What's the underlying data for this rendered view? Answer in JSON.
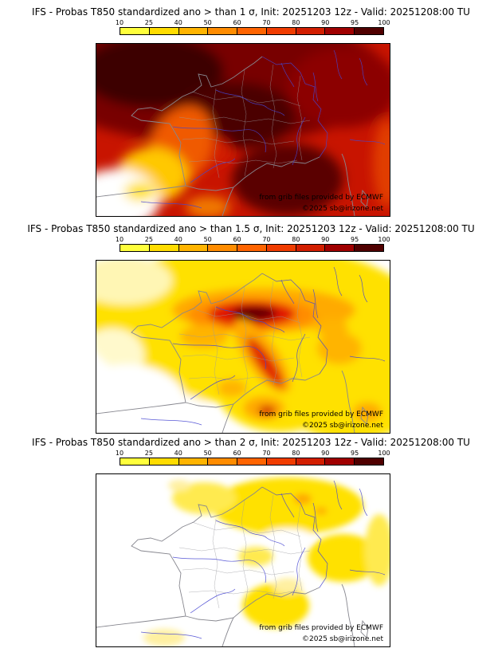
{
  "page": {
    "background": "#ffffff"
  },
  "colorbar": {
    "ticks": [
      "10",
      "25",
      "40",
      "50",
      "60",
      "70",
      "80",
      "90",
      "95",
      "100"
    ],
    "colors": [
      "#ffff3c",
      "#ffdc00",
      "#ffb400",
      "#ff8c00",
      "#ff6400",
      "#f03c00",
      "#d21e00",
      "#a00000",
      "#500000"
    ]
  },
  "panels": [
    {
      "title": "IFS - Probas T850  standardized ano > than 1 σ, Init: 20251203 12z - Valid: 20251208:00 TU",
      "credit": "from grib files provided by ECMWF",
      "copyright": "©2025 sb@irizone.net"
    },
    {
      "title": "IFS - Probas T850  standardized ano > than 1.5 σ, Init: 20251203 12z - Valid: 20251208:00 TU",
      "credit": "from grib files provided by ECMWF",
      "copyright": "©2025 sb@irizone.net"
    },
    {
      "title": "IFS - Probas T850  standardized ano > than 2 σ, Init: 20251203 12z - Valid: 20251208:00 TU",
      "credit": "from grib files provided by ECMWF",
      "copyright": "©2025 sb@irizone.net"
    }
  ],
  "chart_data": [
    {
      "type": "heatmap",
      "model": "IFS",
      "variable": "T850 standardized anomaly probability",
      "threshold": "> 1 sigma",
      "init": "20251203 12z",
      "valid": "20251208:00 TU",
      "units": "probability %",
      "region": "France and western Europe",
      "colorbar_ticks": [
        10,
        25,
        40,
        50,
        60,
        70,
        80,
        90,
        95,
        100
      ],
      "colorbar_colors": [
        "#ffff3c",
        "#ffdc00",
        "#ffb400",
        "#ff8c00",
        "#ff6400",
        "#f03c00",
        "#d21e00",
        "#a00000",
        "#500000"
      ],
      "field_regions": [
        {
          "area": "northern France, Channel, Benelux",
          "probability_pct": "95-100"
        },
        {
          "area": "central France and lower Mediterranean area",
          "probability_pct": "90-100"
        },
        {
          "area": "eastern third of map (Germany, Alps, Italy)",
          "probability_pct": "80-95"
        },
        {
          "area": "west Atlantic coastal strip",
          "probability_pct": "40-80"
        },
        {
          "area": "Bay of Biscay / northwest Spain corner",
          "probability_pct": "0-40"
        }
      ]
    },
    {
      "type": "heatmap",
      "model": "IFS",
      "variable": "T850 standardized anomaly probability",
      "threshold": "> 1.5 sigma",
      "init": "20251203 12z",
      "valid": "20251208:00 TU",
      "units": "probability %",
      "region": "France and western Europe",
      "colorbar_ticks": [
        10,
        25,
        40,
        50,
        60,
        70,
        80,
        90,
        95,
        100
      ],
      "colorbar_colors": [
        "#ffff3c",
        "#ffdc00",
        "#ffb400",
        "#ff8c00",
        "#ff6400",
        "#f03c00",
        "#d21e00",
        "#a00000",
        "#500000"
      ],
      "field_regions": [
        {
          "area": "dark core over Paris basin / northeast France",
          "probability_pct": "90-100"
        },
        {
          "area": "band across northern France",
          "probability_pct": "60-90"
        },
        {
          "area": "diagonal Rhone valley streak toward the south",
          "probability_pct": "50-90"
        },
        {
          "area": "most of France, Germany, Mediterranean",
          "probability_pct": "10-50"
        },
        {
          "area": "Atlantic, Bay of Biscay, northwest Spain",
          "probability_pct": "0-10"
        }
      ]
    },
    {
      "type": "heatmap",
      "model": "IFS",
      "variable": "T850 standardized anomaly probability",
      "threshold": "> 2 sigma",
      "init": "20251203 12z",
      "valid": "20251208:00 TU",
      "units": "probability %",
      "region": "France and western Europe",
      "colorbar_ticks": [
        10,
        25,
        40,
        50,
        60,
        70,
        80,
        90,
        95,
        100
      ],
      "colorbar_colors": [
        "#ffff3c",
        "#ffdc00",
        "#ffb400",
        "#ff8c00",
        "#ff6400",
        "#f03c00",
        "#d21e00",
        "#a00000",
        "#500000"
      ],
      "field_regions": [
        {
          "area": "northeast France, Belgium, west Germany patches",
          "probability_pct": "10-25"
        },
        {
          "area": "small spots inside northeast patch",
          "probability_pct": "25-40"
        },
        {
          "area": "center-east and bottom-center patches",
          "probability_pct": "10-25"
        },
        {
          "area": "rest of map",
          "probability_pct": "0-10"
        }
      ]
    }
  ]
}
